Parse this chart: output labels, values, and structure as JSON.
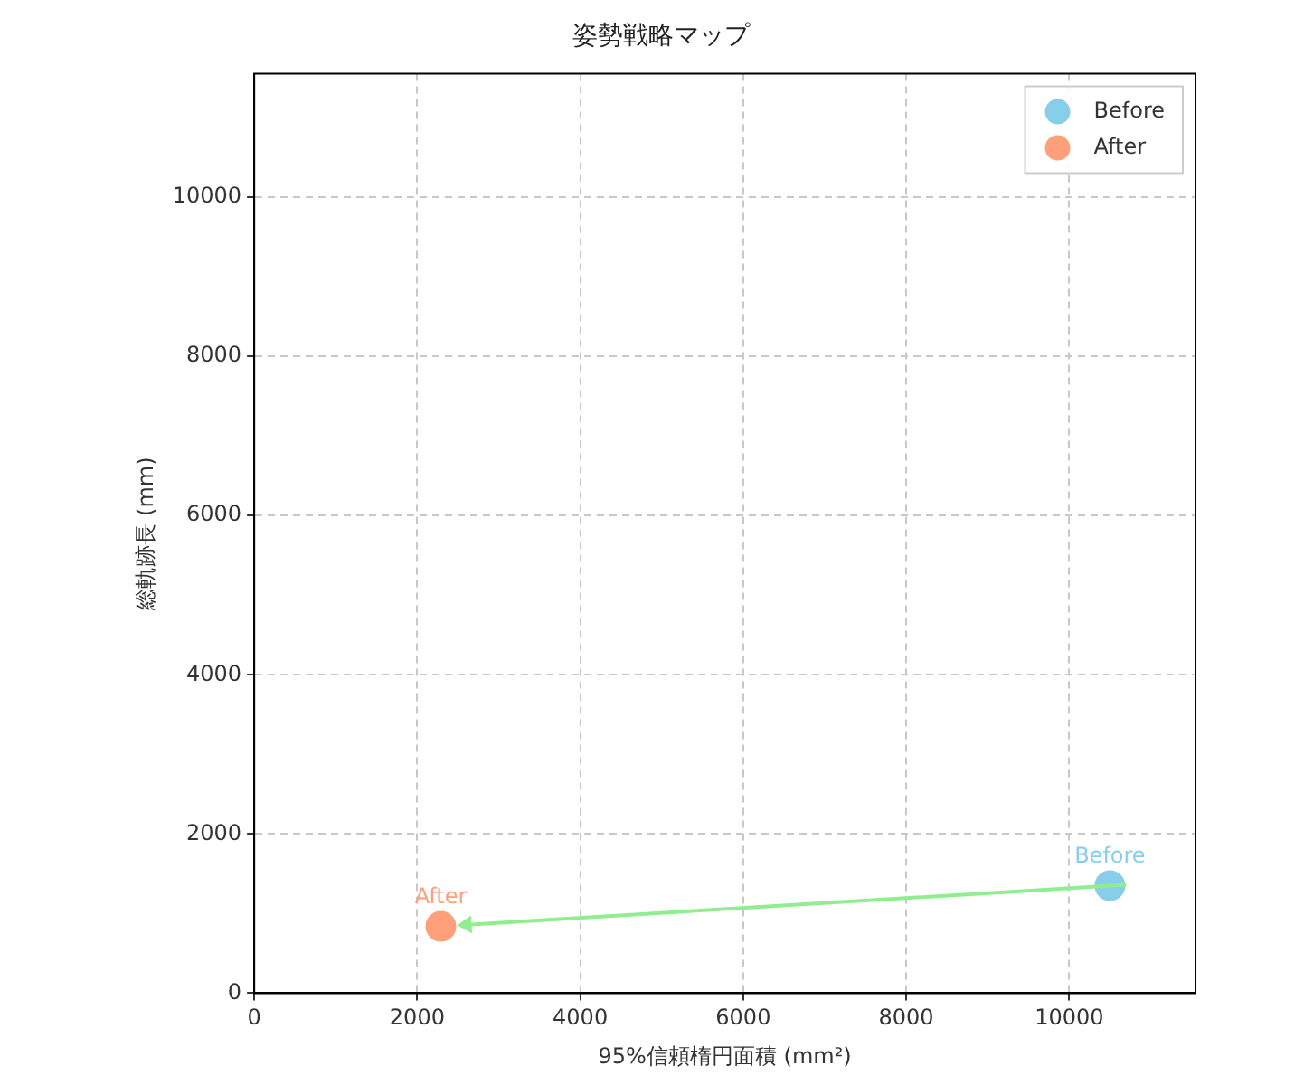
{
  "chart_data": {
    "type": "scatter",
    "title": "姿勢戦略マップ",
    "xlabel": "95%信頼楕円面積 (mm²)",
    "ylabel": "総軌跡長 (mm)",
    "series": [
      {
        "name": "Before",
        "color": "#87ceeb",
        "x": [
          10500
        ],
        "values": [
          1350
        ]
      },
      {
        "name": "After",
        "color": "#ffa07a",
        "x": [
          2290
        ],
        "values": [
          840
        ]
      }
    ],
    "xlim": [
      0,
      11550
    ],
    "xticks": [
      0,
      2000,
      4000,
      6000,
      8000,
      10000
    ],
    "ylim": [
      0,
      11550
    ],
    "yticks": [
      0,
      2000,
      4000,
      6000,
      8000,
      10000
    ],
    "annotations": [
      {
        "text": "Before",
        "x": 10500,
        "y": 1350
      },
      {
        "text": "After",
        "x": 2290,
        "y": 840
      }
    ],
    "grid": true,
    "legend": "top right",
    "marker": "circle"
  }
}
